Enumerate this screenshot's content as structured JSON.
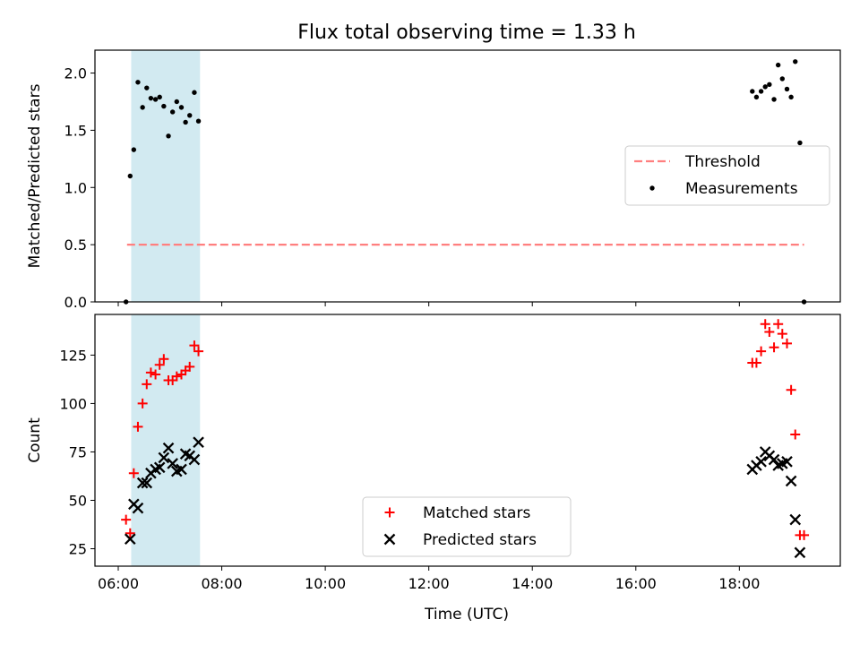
{
  "chart_data": {
    "title": "Flux total observing time = 1.33 h",
    "x_axis": {
      "label": "Time (UTC)",
      "range_hours": [
        5.55,
        19.95
      ],
      "ticks": [
        {
          "value": 6,
          "label": "06:00"
        },
        {
          "value": 8,
          "label": "08:00"
        },
        {
          "value": 10,
          "label": "10:00"
        },
        {
          "value": 12,
          "label": "12:00"
        },
        {
          "value": 14,
          "label": "14:00"
        },
        {
          "value": 16,
          "label": "16:00"
        },
        {
          "value": 18,
          "label": "18:00"
        }
      ]
    },
    "highlight_span": {
      "x_start": 6.25,
      "x_end": 7.58,
      "color": "#add8e6"
    },
    "panels": [
      {
        "type": "scatter",
        "ylabel": "Matched/Predicted stars",
        "ylim": [
          0,
          2.2
        ],
        "yticks": [
          {
            "value": 0,
            "label": "0.0"
          },
          {
            "value": 0.5,
            "label": "0.5"
          },
          {
            "value": 1.0,
            "label": "1.0"
          },
          {
            "value": 1.5,
            "label": "1.5"
          },
          {
            "value": 2.0,
            "label": "2.0"
          }
        ],
        "threshold": {
          "name": "Threshold",
          "value": 0.5,
          "x_range": [
            6.17,
            19.25
          ],
          "color": "#ff7f7f"
        },
        "legend": {
          "position": "center-right",
          "entries": [
            {
              "label": "Threshold",
              "kind": "dashed-line",
              "color": "#ff7f7f"
            },
            {
              "label": "Measurements",
              "kind": "dot",
              "color": "#000000"
            }
          ]
        },
        "series": [
          {
            "name": "Measurements",
            "marker": "dot",
            "color": "#000000",
            "points": [
              [
                6.15,
                0.0
              ],
              [
                6.23,
                1.1
              ],
              [
                6.3,
                1.33
              ],
              [
                6.38,
                1.92
              ],
              [
                6.47,
                1.7
              ],
              [
                6.55,
                1.87
              ],
              [
                6.63,
                1.78
              ],
              [
                6.72,
                1.77
              ],
              [
                6.8,
                1.79
              ],
              [
                6.88,
                1.71
              ],
              [
                6.97,
                1.45
              ],
              [
                7.05,
                1.66
              ],
              [
                7.13,
                1.75
              ],
              [
                7.22,
                1.7
              ],
              [
                7.3,
                1.57
              ],
              [
                7.38,
                1.63
              ],
              [
                7.47,
                1.83
              ],
              [
                7.55,
                1.58
              ],
              [
                18.25,
                1.84
              ],
              [
                18.33,
                1.79
              ],
              [
                18.42,
                1.84
              ],
              [
                18.5,
                1.88
              ],
              [
                18.58,
                1.9
              ],
              [
                18.67,
                1.77
              ],
              [
                18.75,
                2.07
              ],
              [
                18.83,
                1.95
              ],
              [
                18.92,
                1.86
              ],
              [
                19.0,
                1.79
              ],
              [
                19.08,
                2.1
              ],
              [
                19.17,
                1.39
              ],
              [
                19.25,
                0.0
              ]
            ]
          }
        ]
      },
      {
        "type": "scatter",
        "ylabel": "Count",
        "ylim": [
          16,
          146
        ],
        "yticks": [
          {
            "value": 25,
            "label": "25"
          },
          {
            "value": 50,
            "label": "50"
          },
          {
            "value": 75,
            "label": "75"
          },
          {
            "value": 100,
            "label": "100"
          },
          {
            "value": 125,
            "label": "125"
          }
        ],
        "legend": {
          "position": "bottom-center",
          "entries": [
            {
              "label": "Matched stars",
              "kind": "plus",
              "color": "#ff0000"
            },
            {
              "label": "Predicted stars",
              "kind": "x",
              "color": "#000000"
            }
          ]
        },
        "series": [
          {
            "name": "Matched stars",
            "marker": "plus",
            "color": "#ff0000",
            "points": [
              [
                6.15,
                40
              ],
              [
                6.23,
                33
              ],
              [
                6.3,
                64
              ],
              [
                6.38,
                88
              ],
              [
                6.47,
                100
              ],
              [
                6.55,
                110
              ],
              [
                6.63,
                116
              ],
              [
                6.72,
                115
              ],
              [
                6.8,
                120
              ],
              [
                6.88,
                123
              ],
              [
                6.97,
                112
              ],
              [
                7.05,
                112
              ],
              [
                7.13,
                114
              ],
              [
                7.22,
                115
              ],
              [
                7.3,
                117
              ],
              [
                7.38,
                119
              ],
              [
                7.47,
                130
              ],
              [
                7.55,
                127
              ],
              [
                18.25,
                121
              ],
              [
                18.33,
                121
              ],
              [
                18.42,
                127
              ],
              [
                18.5,
                141
              ],
              [
                18.58,
                137
              ],
              [
                18.67,
                129
              ],
              [
                18.75,
                141
              ],
              [
                18.83,
                136
              ],
              [
                18.92,
                131
              ],
              [
                19.0,
                107
              ],
              [
                19.08,
                84
              ],
              [
                19.17,
                32
              ],
              [
                19.25,
                32
              ]
            ]
          },
          {
            "name": "Predicted stars",
            "marker": "x",
            "color": "#000000",
            "points": [
              [
                6.23,
                30
              ],
              [
                6.3,
                48
              ],
              [
                6.38,
                46
              ],
              [
                6.47,
                59
              ],
              [
                6.55,
                59
              ],
              [
                6.63,
                64
              ],
              [
                6.72,
                66
              ],
              [
                6.8,
                67
              ],
              [
                6.88,
                72
              ],
              [
                6.97,
                77
              ],
              [
                7.05,
                69
              ],
              [
                7.13,
                65
              ],
              [
                7.22,
                66
              ],
              [
                7.3,
                74
              ],
              [
                7.38,
                73
              ],
              [
                7.47,
                71
              ],
              [
                7.55,
                80
              ],
              [
                18.25,
                66
              ],
              [
                18.33,
                68
              ],
              [
                18.42,
                70
              ],
              [
                18.5,
                75
              ],
              [
                18.58,
                73
              ],
              [
                18.67,
                71
              ],
              [
                18.75,
                68
              ],
              [
                18.83,
                69
              ],
              [
                18.92,
                70
              ],
              [
                19.0,
                60
              ],
              [
                19.08,
                40
              ],
              [
                19.17,
                23
              ]
            ]
          }
        ]
      }
    ]
  }
}
